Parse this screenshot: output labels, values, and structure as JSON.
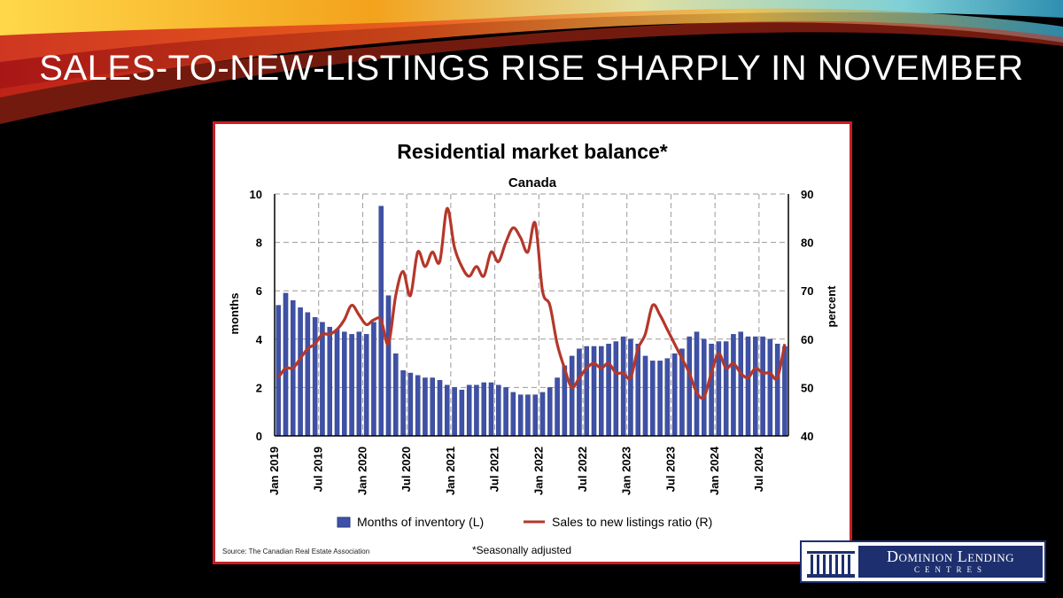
{
  "slide": {
    "title": "SALES-TO-NEW-LISTINGS RISE SHARPLY IN NOVEMBER"
  },
  "logo": {
    "name": "Dominion Lending",
    "sub": "CENTRES"
  },
  "colors": {
    "bar": "#3f51a6",
    "line": "#b5372a",
    "frame": "#c81e22",
    "logo_blue": "#1d2f6e"
  },
  "chart_data": {
    "type": "bar",
    "title": "Residential market balance*",
    "subtitle": "Canada",
    "ylabel_left": "months",
    "ylabel_right": "percent",
    "ylim_left": [
      0,
      10
    ],
    "ylim_right": [
      40,
      90
    ],
    "yticks_left": [
      "0",
      "2",
      "4",
      "6",
      "8",
      "10"
    ],
    "yticks_right": [
      "40",
      "50",
      "60",
      "70",
      "80",
      "90"
    ],
    "xticks": [
      "Jan 2019",
      "Jul 2019",
      "Jan 2020",
      "Jul 2020",
      "Jan 2021",
      "Jul 2021",
      "Jan 2022",
      "Jul 2022",
      "Jan 2023",
      "Jul 2023",
      "Jan 2024",
      "Jul 2024"
    ],
    "x_start": "2019-01",
    "grid": true,
    "legend": [
      "Months of inventory (L)",
      "Sales to new listings ratio (R)"
    ],
    "legend_position": "bottom",
    "note": "*Seasonally adjusted",
    "source": "Source: The Canadian Real Estate Association",
    "series": [
      {
        "name": "Months of inventory (L)",
        "type": "bar",
        "axis": "left",
        "values": [
          5.4,
          5.9,
          5.6,
          5.3,
          5.1,
          4.9,
          4.7,
          4.5,
          4.4,
          4.3,
          4.2,
          4.3,
          4.2,
          4.7,
          9.5,
          5.8,
          3.4,
          2.7,
          2.6,
          2.5,
          2.4,
          2.4,
          2.3,
          2.1,
          2.0,
          1.9,
          2.1,
          2.1,
          2.2,
          2.2,
          2.1,
          2.0,
          1.8,
          1.7,
          1.7,
          1.7,
          1.8,
          2.0,
          2.4,
          2.9,
          3.3,
          3.6,
          3.7,
          3.7,
          3.7,
          3.8,
          3.9,
          4.1,
          4.0,
          3.8,
          3.3,
          3.1,
          3.1,
          3.2,
          3.4,
          3.6,
          4.1,
          4.3,
          4.0,
          3.8,
          3.9,
          3.9,
          4.2,
          4.3,
          4.1,
          4.1,
          4.1,
          4.0,
          3.8,
          3.7
        ]
      },
      {
        "name": "Sales to new listings ratio (R)",
        "type": "line",
        "axis": "right",
        "values": [
          52,
          54,
          54,
          56,
          58,
          59,
          61,
          61,
          62,
          64,
          67,
          65,
          63,
          64,
          64,
          59,
          69,
          74,
          69,
          78,
          75,
          78,
          76,
          87,
          79,
          75,
          73,
          75,
          73,
          78,
          76,
          80,
          83,
          81,
          78,
          84,
          70,
          67,
          59,
          54,
          50,
          52,
          54,
          55,
          54,
          55,
          53,
          53,
          52,
          58,
          61,
          67,
          65,
          62,
          59,
          56,
          53,
          49,
          48,
          53,
          57,
          54,
          55,
          53,
          52,
          54,
          53,
          53,
          52,
          59
        ]
      }
    ]
  }
}
